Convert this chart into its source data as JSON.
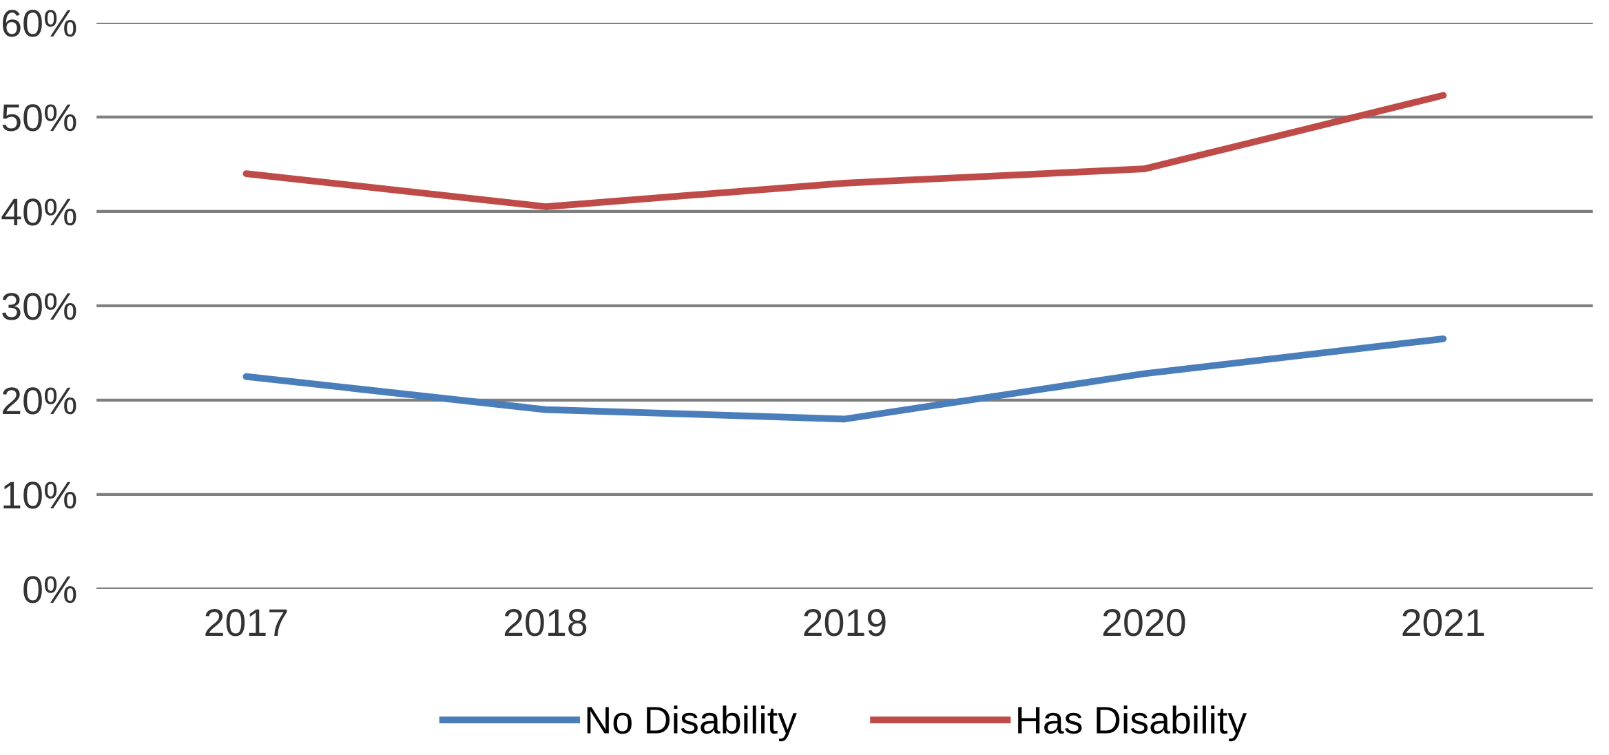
{
  "chart_data": {
    "type": "line",
    "categories": [
      "2017",
      "2018",
      "2019",
      "2020",
      "2021"
    ],
    "series": [
      {
        "name": "No Disability",
        "color": "#4a7ebb",
        "values": [
          22.5,
          19,
          18,
          22.8,
          26.5
        ]
      },
      {
        "name": "Has Disability",
        "color": "#be4b48",
        "values": [
          44,
          40.5,
          43,
          44.5,
          52.3
        ]
      }
    ],
    "ylim": [
      0,
      60
    ],
    "yticks": [
      {
        "value": 0,
        "label": "0%"
      },
      {
        "value": 10,
        "label": "10%"
      },
      {
        "value": 20,
        "label": "20%"
      },
      {
        "value": 30,
        "label": "30%"
      },
      {
        "value": 40,
        "label": "40%"
      },
      {
        "value": 50,
        "label": "50%"
      },
      {
        "value": 60,
        "label": "60%"
      }
    ],
    "grid": "y",
    "legend": "bottom",
    "marker": "none",
    "line_style": "solid"
  }
}
